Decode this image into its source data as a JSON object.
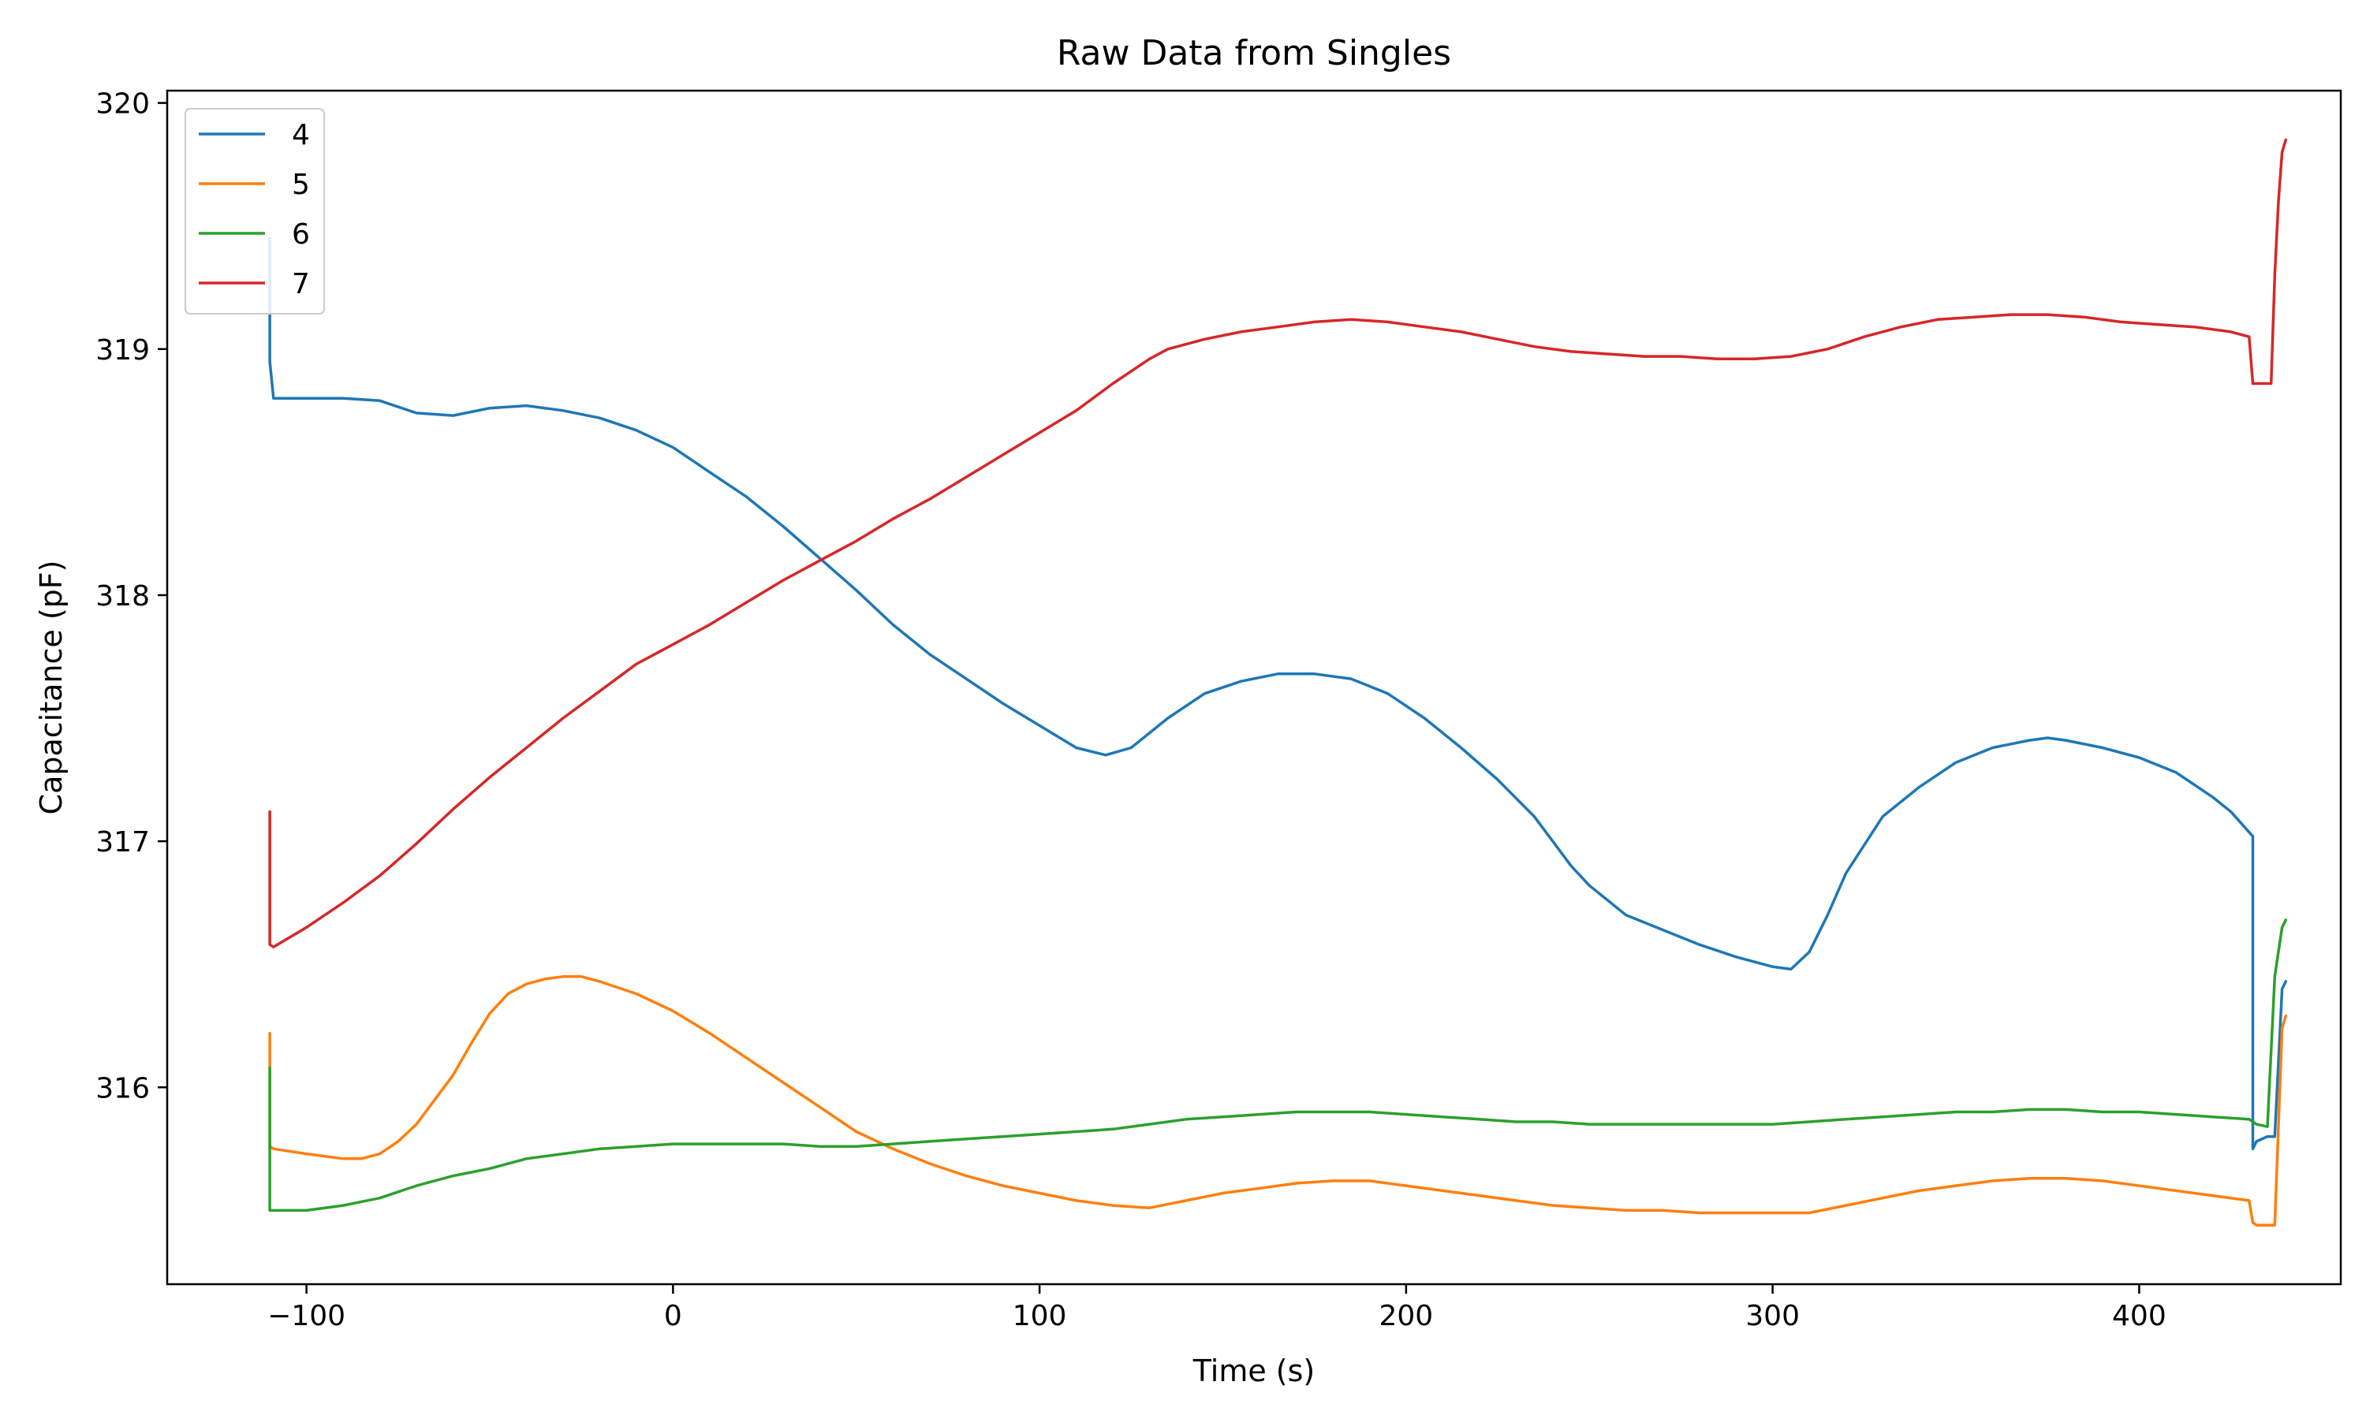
{
  "chart_data": {
    "type": "line",
    "title": "Raw Data from Singles",
    "xlabel": "Time (s)",
    "ylabel": "Capacitance (pF)",
    "xlim": [
      -138,
      455
    ],
    "ylim": [
      315.2,
      320.05
    ],
    "xticks": [
      -100,
      0,
      100,
      200,
      300,
      400
    ],
    "xtick_labels": [
      "−100",
      "0",
      "100",
      "200",
      "300",
      "400"
    ],
    "yticks": [
      316,
      317,
      318,
      319,
      320
    ],
    "ytick_labels": [
      "316",
      "317",
      "318",
      "319",
      "320"
    ],
    "grid": false,
    "legend_position": "top-left",
    "series": [
      {
        "name": "4",
        "color": "#1f77b4",
        "x": [
          -110,
          -110,
          -109,
          -100,
          -90,
          -80,
          -70,
          -60,
          -50,
          -40,
          -30,
          -20,
          -10,
          0,
          10,
          20,
          30,
          40,
          50,
          60,
          70,
          80,
          90,
          100,
          110,
          118,
          125,
          135,
          145,
          155,
          165,
          175,
          185,
          195,
          205,
          215,
          225,
          235,
          240,
          245,
          250,
          255,
          260,
          270,
          280,
          290,
          300,
          305,
          310,
          315,
          320,
          330,
          340,
          350,
          360,
          370,
          375,
          380,
          390,
          400,
          410,
          420,
          425,
          431,
          431,
          432,
          435,
          437,
          439,
          440
        ],
        "y": [
          319.45,
          318.95,
          318.8,
          318.8,
          318.8,
          318.79,
          318.74,
          318.73,
          318.76,
          318.77,
          318.75,
          318.72,
          318.67,
          318.6,
          318.5,
          318.4,
          318.28,
          318.15,
          318.02,
          317.88,
          317.76,
          317.66,
          317.56,
          317.47,
          317.38,
          317.35,
          317.38,
          317.5,
          317.6,
          317.65,
          317.68,
          317.68,
          317.66,
          317.6,
          317.5,
          317.38,
          317.25,
          317.1,
          317.0,
          316.9,
          316.82,
          316.76,
          316.7,
          316.64,
          316.58,
          316.53,
          316.49,
          316.48,
          316.55,
          316.7,
          316.87,
          317.1,
          317.22,
          317.32,
          317.38,
          317.41,
          317.42,
          317.41,
          317.38,
          317.34,
          317.28,
          317.18,
          317.12,
          317.02,
          315.75,
          315.78,
          315.8,
          315.8,
          316.4,
          316.43
        ]
      },
      {
        "name": "5",
        "color": "#ff7f0e",
        "x": [
          -110,
          -110,
          -109,
          -100,
          -90,
          -85,
          -80,
          -75,
          -70,
          -65,
          -60,
          -55,
          -50,
          -45,
          -40,
          -35,
          -30,
          -25,
          -20,
          -10,
          0,
          10,
          20,
          30,
          40,
          50,
          60,
          70,
          80,
          90,
          100,
          110,
          120,
          130,
          140,
          150,
          160,
          170,
          180,
          190,
          200,
          210,
          220,
          230,
          240,
          250,
          260,
          270,
          280,
          290,
          300,
          310,
          320,
          330,
          340,
          350,
          360,
          370,
          380,
          390,
          400,
          410,
          420,
          430,
          431,
          432,
          435,
          437,
          439,
          440
        ],
        "y": [
          316.22,
          315.76,
          315.75,
          315.73,
          315.71,
          315.71,
          315.73,
          315.78,
          315.85,
          315.95,
          316.05,
          316.18,
          316.3,
          316.38,
          316.42,
          316.44,
          316.45,
          316.45,
          316.43,
          316.38,
          316.31,
          316.22,
          316.12,
          316.02,
          315.92,
          315.82,
          315.75,
          315.69,
          315.64,
          315.6,
          315.57,
          315.54,
          315.52,
          315.51,
          315.54,
          315.57,
          315.59,
          315.61,
          315.62,
          315.62,
          315.6,
          315.58,
          315.56,
          315.54,
          315.52,
          315.51,
          315.5,
          315.5,
          315.49,
          315.49,
          315.49,
          315.49,
          315.52,
          315.55,
          315.58,
          315.6,
          315.62,
          315.63,
          315.63,
          315.62,
          315.6,
          315.58,
          315.56,
          315.54,
          315.45,
          315.44,
          315.44,
          315.44,
          316.24,
          316.29
        ]
      },
      {
        "name": "6",
        "color": "#2ca02c",
        "x": [
          -110,
          -110,
          -109,
          -100,
          -90,
          -80,
          -70,
          -60,
          -50,
          -40,
          -30,
          -20,
          -10,
          0,
          10,
          20,
          30,
          40,
          50,
          60,
          70,
          80,
          90,
          100,
          110,
          120,
          130,
          140,
          150,
          160,
          170,
          180,
          190,
          200,
          210,
          220,
          230,
          240,
          250,
          260,
          270,
          280,
          290,
          300,
          310,
          320,
          330,
          340,
          350,
          360,
          370,
          380,
          390,
          400,
          410,
          420,
          430,
          431,
          432,
          435,
          437,
          439,
          440
        ],
        "y": [
          316.08,
          315.5,
          315.5,
          315.5,
          315.52,
          315.55,
          315.6,
          315.64,
          315.67,
          315.71,
          315.73,
          315.75,
          315.76,
          315.77,
          315.77,
          315.77,
          315.77,
          315.76,
          315.76,
          315.77,
          315.78,
          315.79,
          315.8,
          315.81,
          315.82,
          315.83,
          315.85,
          315.87,
          315.88,
          315.89,
          315.9,
          315.9,
          315.9,
          315.89,
          315.88,
          315.87,
          315.86,
          315.86,
          315.85,
          315.85,
          315.85,
          315.85,
          315.85,
          315.85,
          315.86,
          315.87,
          315.88,
          315.89,
          315.9,
          315.9,
          315.91,
          315.91,
          315.9,
          315.9,
          315.89,
          315.88,
          315.87,
          315.86,
          315.85,
          315.84,
          316.45,
          316.65,
          316.68
        ]
      },
      {
        "name": "7",
        "color": "#d62728",
        "x": [
          -110,
          -110,
          -109,
          -100,
          -90,
          -80,
          -70,
          -60,
          -50,
          -40,
          -30,
          -20,
          -10,
          0,
          10,
          20,
          30,
          40,
          50,
          60,
          70,
          80,
          90,
          100,
          110,
          120,
          130,
          135,
          145,
          155,
          165,
          175,
          185,
          195,
          205,
          215,
          225,
          235,
          245,
          255,
          265,
          275,
          285,
          295,
          305,
          315,
          325,
          335,
          345,
          355,
          365,
          375,
          385,
          395,
          405,
          415,
          425,
          430,
          431,
          432,
          435,
          436,
          437,
          438,
          439,
          440
        ],
        "y": [
          317.12,
          316.58,
          316.57,
          316.65,
          316.75,
          316.86,
          316.99,
          317.13,
          317.26,
          317.38,
          317.5,
          317.61,
          317.72,
          317.8,
          317.88,
          317.97,
          318.06,
          318.14,
          318.22,
          318.31,
          318.39,
          318.48,
          318.57,
          318.66,
          318.75,
          318.86,
          318.96,
          319.0,
          319.04,
          319.07,
          319.09,
          319.11,
          319.12,
          319.11,
          319.09,
          319.07,
          319.04,
          319.01,
          318.99,
          318.98,
          318.97,
          318.97,
          318.96,
          318.96,
          318.97,
          319.0,
          319.05,
          319.09,
          319.12,
          319.13,
          319.14,
          319.14,
          319.13,
          319.11,
          319.1,
          319.09,
          319.07,
          319.05,
          318.86,
          318.86,
          318.86,
          318.86,
          319.3,
          319.6,
          319.8,
          319.85
        ]
      }
    ]
  }
}
